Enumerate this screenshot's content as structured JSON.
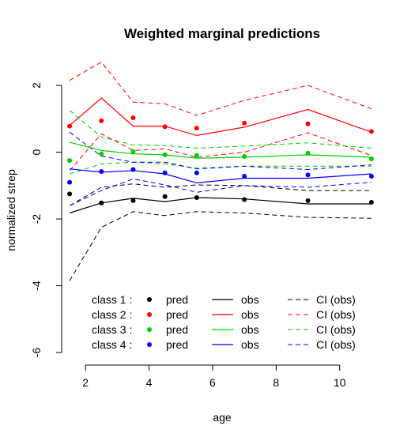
{
  "chart_data": {
    "type": "line",
    "title": "Weighted marginal predictions",
    "xlabel": "age",
    "ylabel": "normalized strep",
    "xlim": [
      1.2,
      11.4
    ],
    "ylim": [
      -6.4,
      2.9
    ],
    "x_ticks": [
      2,
      4,
      6,
      8,
      10
    ],
    "y_ticks": [
      -6,
      -4,
      -2,
      0,
      2
    ],
    "x_tick_labels": [
      "2",
      "4",
      "6",
      "8",
      "10"
    ],
    "y_tick_labels": [
      "-6",
      "-4",
      "-2",
      "0",
      "2"
    ],
    "grid": false,
    "legend_position": "bottom-left inside",
    "legend_headers": [
      "pred",
      "obs",
      "CI (obs)"
    ],
    "x": [
      1.5,
      2.5,
      3.5,
      4.5,
      5.5,
      7,
      9,
      11
    ],
    "series": [
      {
        "name": "class 1 :",
        "color": "#000000",
        "pred": [
          -1.25,
          -1.52,
          -1.45,
          -1.33,
          -1.36,
          -1.42,
          -1.45,
          -1.5
        ],
        "obs": [
          -1.82,
          -1.52,
          -1.38,
          -1.48,
          -1.36,
          -1.4,
          -1.55,
          -1.55
        ],
        "ci_upper": [
          -1.6,
          -1.05,
          -0.95,
          -1.05,
          -0.98,
          -1.0,
          -1.15,
          -1.15
        ],
        "ci_lower": [
          -3.85,
          -2.25,
          -1.78,
          -1.9,
          -1.78,
          -1.82,
          -1.95,
          -1.98
        ]
      },
      {
        "name": "class 2 :",
        "color": "#ff0000",
        "pred": [
          0.78,
          0.94,
          1.03,
          0.76,
          0.72,
          0.87,
          0.85,
          0.62
        ],
        "obs": [
          0.8,
          1.62,
          0.78,
          0.78,
          0.5,
          0.75,
          1.28,
          0.6
        ],
        "ci_upper": [
          2.15,
          2.7,
          1.5,
          1.45,
          1.1,
          1.55,
          2.0,
          1.3
        ],
        "ci_lower": [
          -0.55,
          0.55,
          0.05,
          0.1,
          -0.15,
          0.0,
          0.58,
          -0.1
        ]
      },
      {
        "name": "class 3 :",
        "color": "#00cc00",
        "pred": [
          -0.25,
          -0.05,
          0.02,
          -0.08,
          -0.1,
          -0.13,
          -0.03,
          -0.2
        ],
        "obs": [
          0.3,
          0.05,
          -0.05,
          -0.08,
          -0.18,
          -0.15,
          -0.08,
          -0.15
        ],
        "ci_upper": [
          1.25,
          0.45,
          0.22,
          0.2,
          0.12,
          0.18,
          0.28,
          0.12
        ],
        "ci_lower": [
          -0.65,
          -0.35,
          -0.3,
          -0.35,
          -0.48,
          -0.42,
          -0.42,
          -0.42
        ]
      },
      {
        "name": "class 4 :",
        "color": "#0000ff",
        "pred": [
          -0.9,
          -0.58,
          -0.52,
          -0.62,
          -0.62,
          -0.72,
          -0.68,
          -0.72
        ],
        "obs": [
          -0.5,
          -0.6,
          -0.55,
          -0.65,
          -0.92,
          -0.78,
          -0.78,
          -0.65
        ],
        "ci_upper": [
          0.6,
          -0.12,
          -0.3,
          -0.3,
          -0.5,
          -0.42,
          -0.52,
          -0.38
        ],
        "ci_lower": [
          -1.6,
          -1.15,
          -0.8,
          -0.98,
          -1.2,
          -1.0,
          -1.05,
          -0.9
        ]
      }
    ]
  }
}
